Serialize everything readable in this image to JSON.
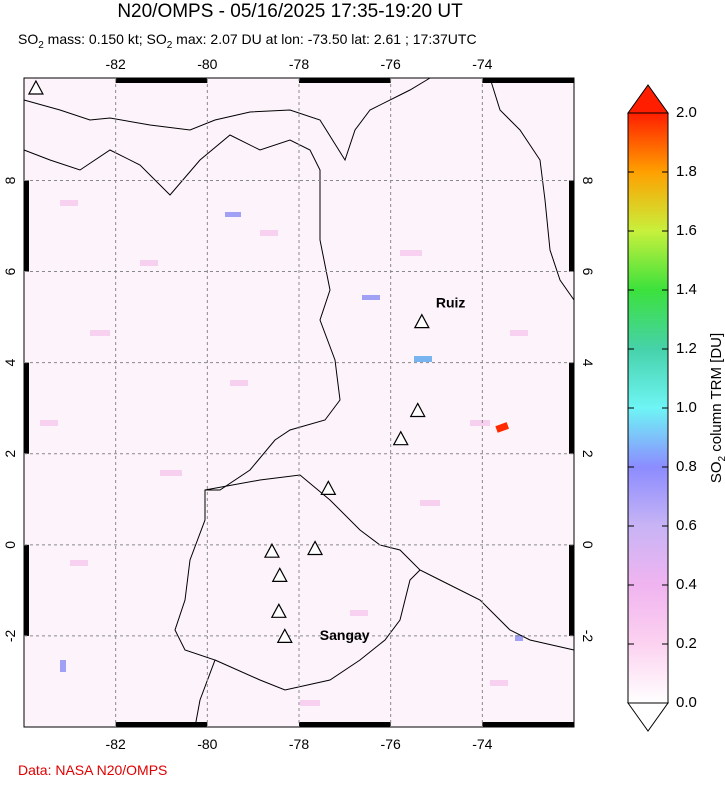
{
  "header": {
    "title": "N20/OMPS - 05/16/2025 17:35-19:20 UT",
    "subtitle": [
      "SO",
      "2",
      " mass: 0.150 kt; SO",
      "2",
      " max: 2.07 DU at lon: -73.50 lat: 2.61 ; 17:37UTC"
    ]
  },
  "map": {
    "xlim": [
      -84,
      -72
    ],
    "ylim": [
      -4,
      10.25
    ],
    "xticks": [
      -82,
      -80,
      -78,
      -76,
      -74
    ],
    "yticks": [
      -2,
      0,
      2,
      4,
      6,
      8
    ],
    "grid": true,
    "volcanoes": [
      {
        "lon": -75.32,
        "lat": 4.9,
        "name": "Ruiz"
      },
      {
        "lon": -75.41,
        "lat": 2.95
      },
      {
        "lon": -75.78,
        "lat": 2.33
      },
      {
        "lon": -77.36,
        "lat": 1.24
      },
      {
        "lon": -77.65,
        "lat": -0.08
      },
      {
        "lon": -78.59,
        "lat": -0.14
      },
      {
        "lon": -78.42,
        "lat": -0.67
      },
      {
        "lon": -78.44,
        "lat": -1.46
      },
      {
        "lon": -78.31,
        "lat": -2.01,
        "name": "Sangay"
      },
      {
        "lon": -83.74,
        "lat": 10.03
      }
    ]
  },
  "colorbar": {
    "label": [
      "SO",
      "2",
      " column TRM [DU]"
    ],
    "lim": [
      0,
      2
    ],
    "ticks": [
      {
        "value": 0,
        "label": "0.0"
      },
      {
        "value": 0.2,
        "label": "0.2"
      },
      {
        "value": 0.4,
        "label": "0.4"
      },
      {
        "value": 0.6,
        "label": "0.6"
      },
      {
        "value": 0.8,
        "label": "0.8"
      },
      {
        "value": 1,
        "label": "1.0"
      },
      {
        "value": 1.2,
        "label": "1.2"
      },
      {
        "value": 1.4,
        "label": "1.4"
      },
      {
        "value": 1.6,
        "label": "1.6"
      },
      {
        "value": 1.8,
        "label": "1.8"
      },
      {
        "value": 2,
        "label": "2.0"
      }
    ],
    "colors": [
      "#ffffff",
      "#fcd2f0",
      "#f0b4f0",
      "#c8b4f5",
      "#8c8cff",
      "#6ef5f5",
      "#46d2aa",
      "#3ce13c",
      "#c8f03c",
      "#ffa000",
      "#ff1e00"
    ]
  },
  "footer": {
    "credit": "Data: NASA N20/OMPS"
  }
}
